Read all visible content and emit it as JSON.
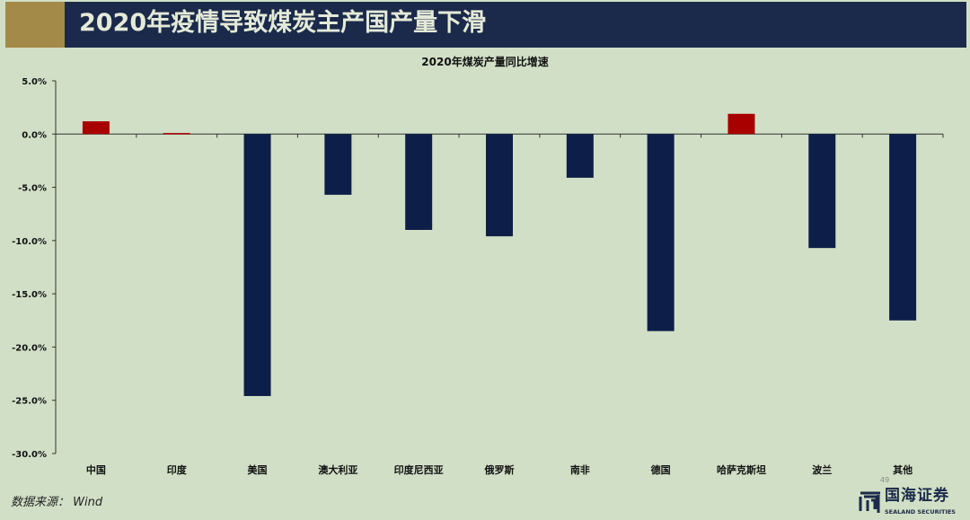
{
  "header": {
    "title": "2020年疫情导致煤炭主产国产量下滑"
  },
  "footer": {
    "source": "数据来源： Wind",
    "page_number": "49",
    "logo_cn": "国海证券",
    "logo_en": "SEALAND SECURITIES"
  },
  "colors": {
    "positive": "#a80000",
    "negative": "#0d1f48",
    "header_bg": "#1b2a4a",
    "accent": "#a38a48",
    "background": "#d1dfc6"
  },
  "chart_data": {
    "type": "bar",
    "title": "2020年煤炭产量同比增速",
    "categories": [
      "中国",
      "印度",
      "美国",
      "澳大利亚",
      "印度尼西亚",
      "俄罗斯",
      "南非",
      "德国",
      "哈萨克斯坦",
      "波兰",
      "其他"
    ],
    "values": [
      1.2,
      0.1,
      -24.6,
      -5.7,
      -9.0,
      -9.6,
      -4.1,
      -18.5,
      1.9,
      -10.7,
      -17.5
    ],
    "unit": "%",
    "ylim": [
      -30,
      5
    ],
    "yticks": [
      "5.0%",
      "0.0%",
      "-5.0%",
      "-10.0%",
      "-15.0%",
      "-20.0%",
      "-25.0%",
      "-30.0%"
    ],
    "grid": false,
    "legend": "none"
  }
}
